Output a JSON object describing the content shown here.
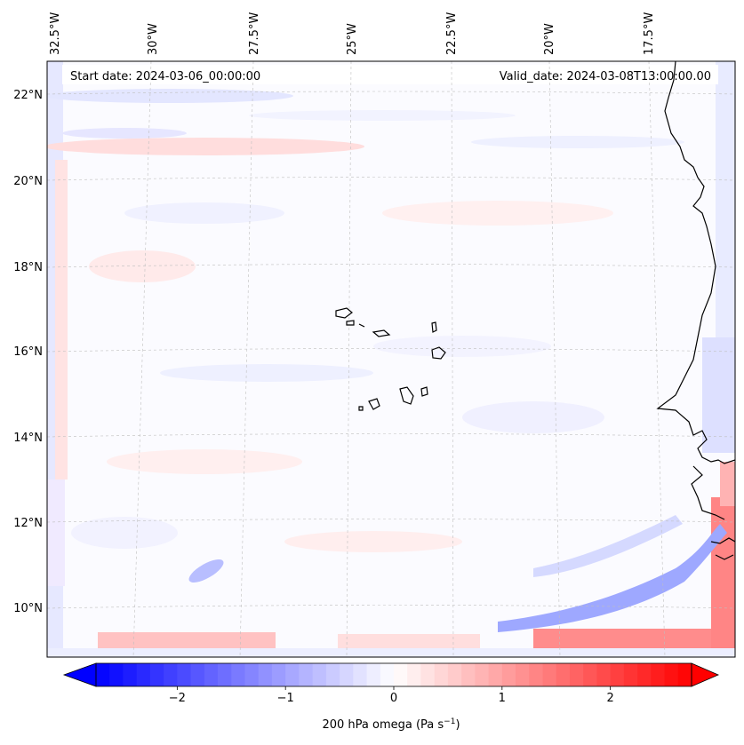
{
  "header": {
    "start_date": "Start date: 2024-03-06_00:00:00",
    "valid_date": "Valid_date: 2024-03-08T13:00:00.00"
  },
  "gridlines": {
    "lon_labels": [
      "32.5°W",
      "30°W",
      "27.5°W",
      "25°W",
      "22.5°W",
      "20°W",
      "17.5°W"
    ],
    "lat_labels": [
      "22°N",
      "20°N",
      "18°N",
      "16°N",
      "14°N",
      "12°N",
      "10°N"
    ]
  },
  "colorbar": {
    "ticks": [
      {
        "value": -2,
        "label": "−2"
      },
      {
        "value": -1,
        "label": "−1"
      },
      {
        "value": 0,
        "label": "0"
      },
      {
        "value": 1,
        "label": "1"
      },
      {
        "value": 2,
        "label": "2"
      }
    ],
    "range": [
      -2.75,
      2.75
    ],
    "label_main": "200 hPa omega (Pa s",
    "label_sup": "−1",
    "label_close": ")",
    "colors": {
      "negative": "#0000ff",
      "zero": "#ffffff",
      "positive": "#ff0000"
    }
  }
}
